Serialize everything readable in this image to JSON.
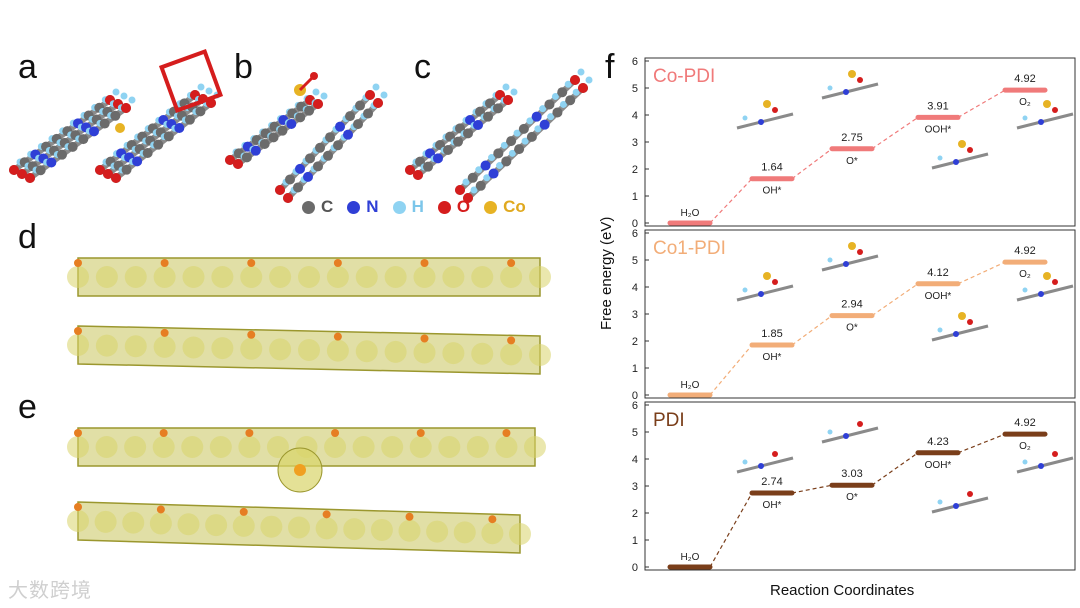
{
  "panel_labels": [
    "a",
    "b",
    "c",
    "d",
    "e",
    "f"
  ],
  "legend": [
    {
      "symbol": "C",
      "color": "#6b6b6b"
    },
    {
      "symbol": "N",
      "color": "#2f3fd6"
    },
    {
      "symbol": "H",
      "color": "#8fd3f2"
    },
    {
      "symbol": "O",
      "color": "#d51d1d"
    },
    {
      "symbol": "Co",
      "color": "#e7b324"
    }
  ],
  "watermark": "大数跨境",
  "chart_data": {
    "type": "line",
    "xlabel": "Reaction Coordinates",
    "ylabel": "Free energy (eV)",
    "ylim": [
      0,
      6
    ],
    "yticks": [
      "0",
      "1",
      "2",
      "3",
      "4",
      "5",
      "6"
    ],
    "steps": [
      "H₂O",
      "OH*",
      "O*",
      "OOH*",
      "O₂"
    ],
    "series": [
      {
        "name": "Co-PDI",
        "color": "#f07a7a",
        "values": [
          0,
          1.64,
          2.75,
          3.91,
          4.92
        ],
        "labels": [
          "",
          "1.64",
          "2.75",
          "3.91",
          "4.92"
        ]
      },
      {
        "name": "Co1-PDI",
        "color": "#f2ad78",
        "values": [
          0,
          1.85,
          2.94,
          4.12,
          4.92
        ],
        "labels": [
          "",
          "1.85",
          "2.94",
          "4.12",
          "4.92"
        ]
      },
      {
        "name": "PDI",
        "color": "#7a3e1a",
        "values": [
          0,
          2.74,
          3.03,
          4.23,
          4.92
        ],
        "labels": [
          "",
          "2.74",
          "3.03",
          "4.23",
          "4.92"
        ]
      }
    ]
  }
}
